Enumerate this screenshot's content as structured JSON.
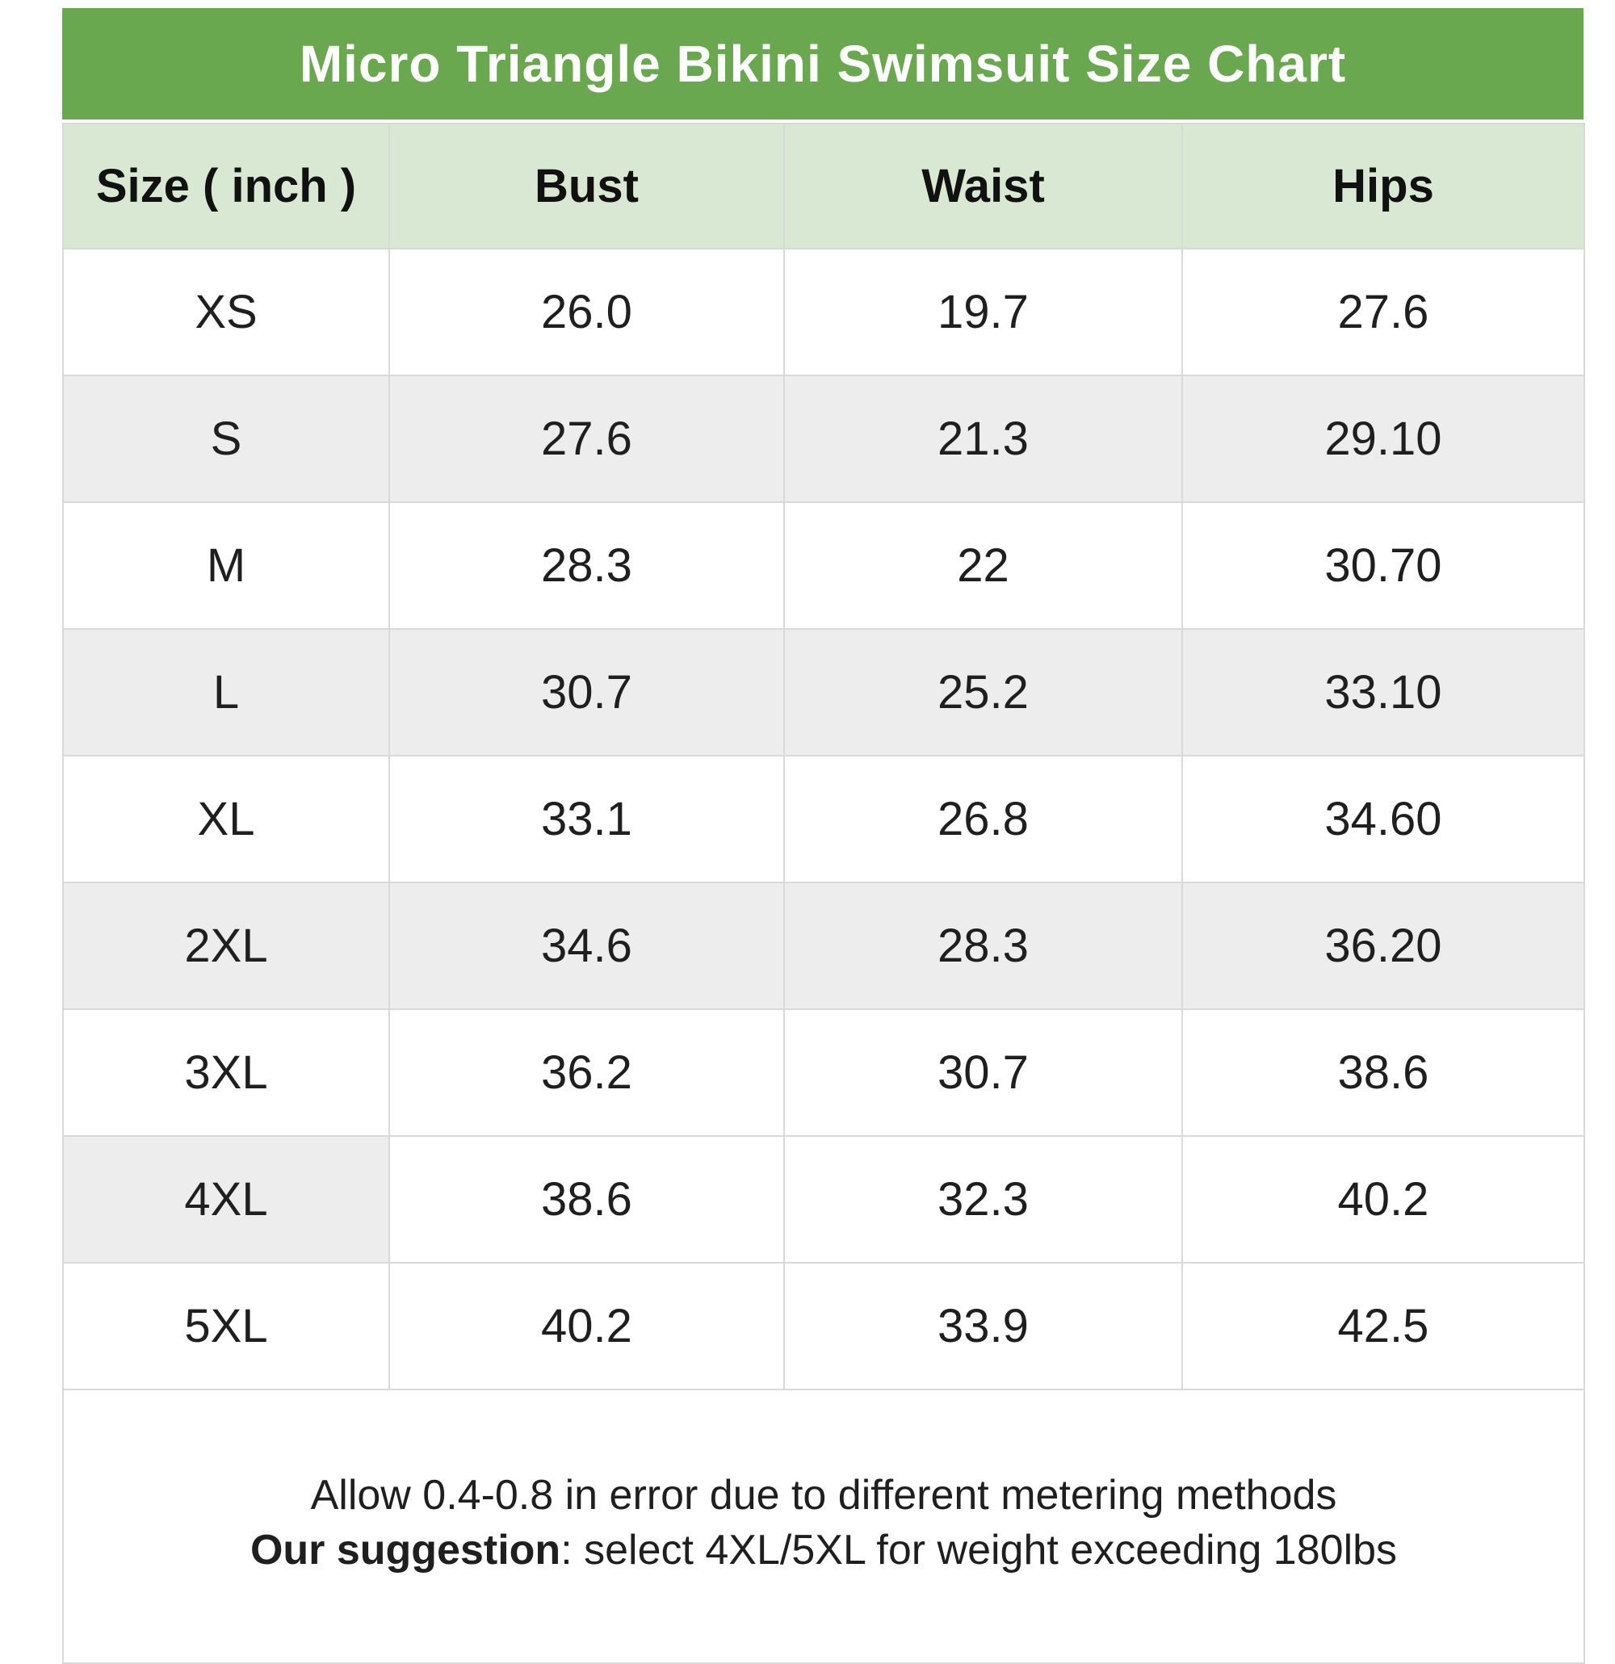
{
  "title": "Micro Triangle Bikini Swimsuit Size Chart",
  "table": {
    "columns": [
      "Size ( inch )",
      "Bust",
      "Waist",
      "Hips"
    ],
    "rows": [
      {
        "size": "XS",
        "bust": "26.0",
        "waist": "19.7",
        "hips": "27.6",
        "shade": "none"
      },
      {
        "size": "S",
        "bust": "27.6",
        "waist": "21.3",
        "hips": "29.10",
        "shade": "full"
      },
      {
        "size": "M",
        "bust": "28.3",
        "waist": "22",
        "hips": "30.70",
        "shade": "none"
      },
      {
        "size": "L",
        "bust": "30.7",
        "waist": "25.2",
        "hips": "33.10",
        "shade": "full"
      },
      {
        "size": "XL",
        "bust": "33.1",
        "waist": "26.8",
        "hips": "34.60",
        "shade": "none"
      },
      {
        "size": "2XL",
        "bust": "34.6",
        "waist": "28.3",
        "hips": "36.20",
        "shade": "full"
      },
      {
        "size": "3XL",
        "bust": "36.2",
        "waist": "30.7",
        "hips": "38.6",
        "shade": "none"
      },
      {
        "size": "4XL",
        "bust": "38.6",
        "waist": "32.3",
        "hips": "40.2",
        "shade": "first-cell"
      },
      {
        "size": "5XL",
        "bust": "40.2",
        "waist": "33.9",
        "hips": "42.5",
        "shade": "none"
      }
    ]
  },
  "footer": {
    "line1": "Allow 0.4-0.8 in error due to different metering methods",
    "suggestion_label": "Our suggestion",
    "suggestion_text": ": select 4XL/5XL for weight exceeding 180lbs"
  },
  "colors": {
    "title_bar_bg": "#6aa84f",
    "title_text": "#ffffff",
    "header_row_bg": "#d9e8d2",
    "stripe_row_bg": "#ededed",
    "border": "#d9d9d9",
    "text": "#1f1f1f"
  },
  "chart_data": {
    "type": "table",
    "title": "Micro Triangle Bikini Swimsuit Size Chart",
    "unit": "inch",
    "columns": [
      "Size ( inch )",
      "Bust",
      "Waist",
      "Hips"
    ],
    "rows": [
      [
        "XS",
        "26.0",
        "19.7",
        "27.6"
      ],
      [
        "S",
        "27.6",
        "21.3",
        "29.10"
      ],
      [
        "M",
        "28.3",
        "22",
        "30.70"
      ],
      [
        "L",
        "30.7",
        "25.2",
        "33.10"
      ],
      [
        "XL",
        "33.1",
        "26.8",
        "34.60"
      ],
      [
        "2XL",
        "34.6",
        "28.3",
        "36.20"
      ],
      [
        "3XL",
        "36.2",
        "30.7",
        "38.6"
      ],
      [
        "4XL",
        "38.6",
        "32.3",
        "40.2"
      ],
      [
        "5XL",
        "40.2",
        "33.9",
        "42.5"
      ]
    ],
    "notes": [
      "Allow 0.4-0.8 in error due to different metering methods",
      "Our suggestion: select 4XL/5XL for weight exceeding 180lbs"
    ]
  }
}
